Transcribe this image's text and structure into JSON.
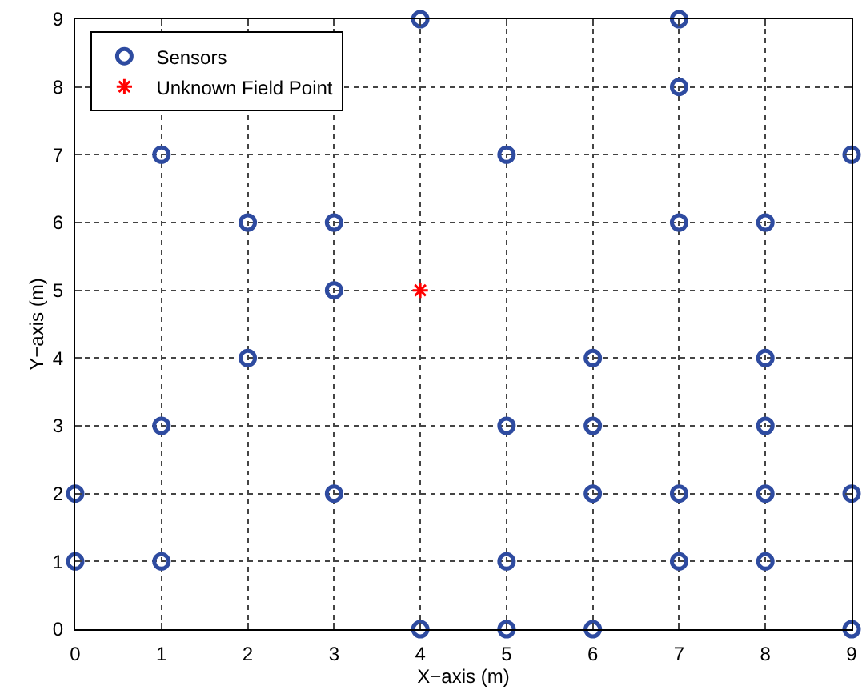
{
  "chart_data": {
    "type": "scatter",
    "xlabel": "X−axis (m)",
    "ylabel": "Y−axis (m)",
    "xlim": [
      0,
      9
    ],
    "ylim": [
      0,
      9
    ],
    "xticks": [
      0,
      1,
      2,
      3,
      4,
      5,
      6,
      7,
      8,
      9
    ],
    "yticks": [
      0,
      1,
      2,
      3,
      4,
      5,
      6,
      7,
      8,
      9
    ],
    "grid": true,
    "legend": "top left",
    "line_style": "dotted",
    "series": [
      {
        "name": "Sensors",
        "color": "#2e4ba0",
        "marker": "circle",
        "x": [
          4,
          7,
          7,
          1,
          5,
          9,
          2,
          3,
          7,
          8,
          3,
          2,
          6,
          8,
          1,
          5,
          6,
          8,
          0,
          3,
          6,
          7,
          8,
          9,
          0,
          1,
          5,
          7,
          8,
          4,
          5,
          6,
          9
        ],
        "values": [
          9,
          9,
          8,
          7,
          7,
          7,
          6,
          6,
          6,
          6,
          5,
          4,
          4,
          4,
          3,
          3,
          3,
          3,
          2,
          2,
          2,
          2,
          2,
          2,
          1,
          1,
          1,
          1,
          1,
          0,
          0,
          0,
          0
        ]
      },
      {
        "name": "Unknown Field Point",
        "color": "#ff0000",
        "marker": "cross",
        "x": [
          4
        ],
        "values": [
          5
        ]
      }
    ]
  }
}
